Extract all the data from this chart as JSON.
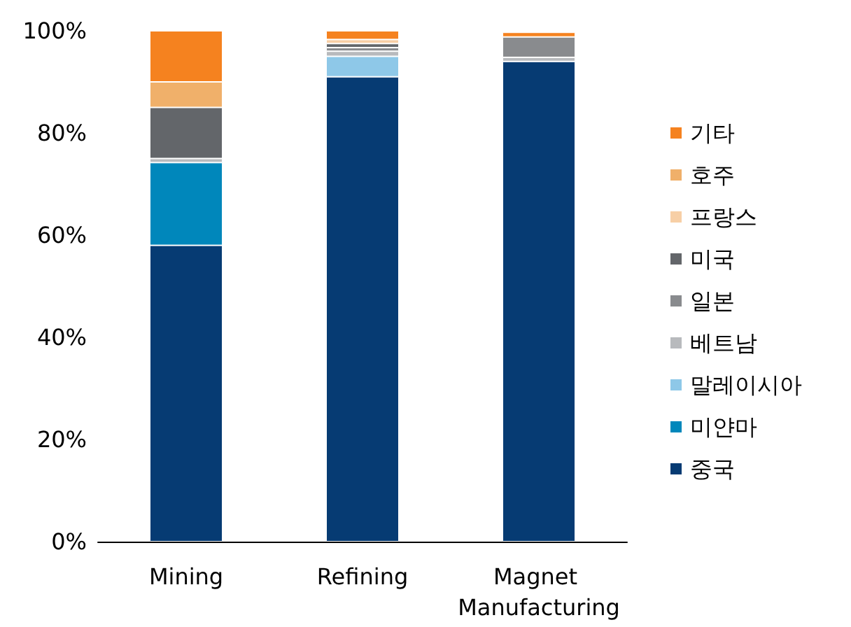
{
  "chart_data": {
    "type": "bar",
    "stacked": true,
    "categories": [
      "Mining",
      "Refining",
      "Magnet Manufacturing"
    ],
    "series": [
      {
        "name": "중국",
        "color": "#063b73",
        "values": [
          58,
          91,
          94
        ]
      },
      {
        "name": "미얀마",
        "color": "#0087bb",
        "values": [
          16.2,
          null,
          null
        ]
      },
      {
        "name": "말레이시아",
        "color": "#8ec8e8",
        "values": [
          null,
          4,
          null
        ]
      },
      {
        "name": "베트남",
        "color": "#b8babd",
        "values": [
          0.8,
          1,
          0.8
        ]
      },
      {
        "name": "일본",
        "color": "#898b8e",
        "values": [
          null,
          0.7,
          4
        ]
      },
      {
        "name": "미국",
        "color": "#63666a",
        "values": [
          10,
          0.8,
          null
        ]
      },
      {
        "name": "프랑스",
        "color": "#f7cfa6",
        "values": [
          null,
          0.8,
          null
        ]
      },
      {
        "name": "호주",
        "color": "#f0b06a",
        "values": [
          5,
          null,
          null
        ]
      },
      {
        "name": "기타",
        "color": "#f5821f",
        "values": [
          10,
          1.7,
          0.9
        ]
      }
    ],
    "ylim": [
      0,
      100
    ],
    "yticks": [
      {
        "value": 0,
        "label": "0%"
      },
      {
        "value": 20,
        "label": "20%"
      },
      {
        "value": 40,
        "label": "40%"
      },
      {
        "value": 60,
        "label": "60%"
      },
      {
        "value": 80,
        "label": "80%"
      },
      {
        "value": 100,
        "label": "100%"
      }
    ],
    "grid": false,
    "legend": "right"
  }
}
